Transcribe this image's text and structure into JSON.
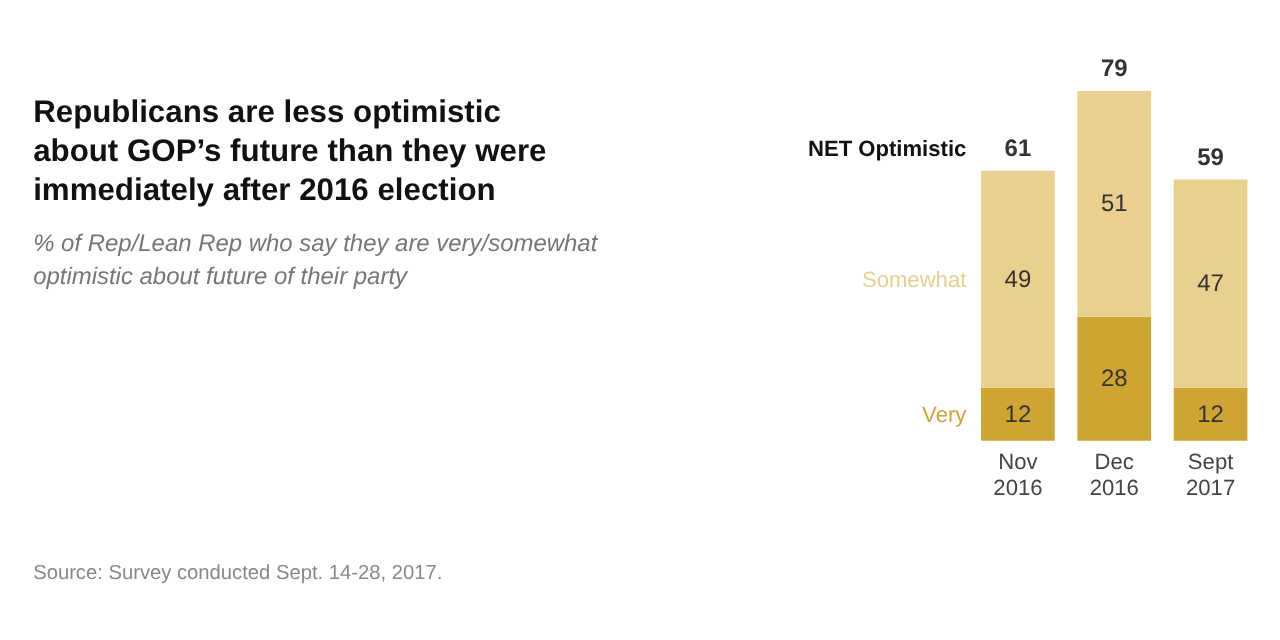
{
  "chart_data": {
    "type": "bar",
    "stacked": true,
    "title": "Republicans are less optimistic about GOP’s future than they were immediately after 2016 election",
    "subtitle": "% of Rep/Lean Rep who say they are very/somewhat optimistic about future of their party",
    "categories": [
      "Nov 2016",
      "Dec 2016",
      "Sept 2017"
    ],
    "series": [
      {
        "name": "Very",
        "color": "#cfa532",
        "values": [
          12,
          28,
          12
        ]
      },
      {
        "name": "Somewhat",
        "color": "#e9d08f",
        "values": [
          49,
          51,
          47
        ]
      }
    ],
    "data_labels": true,
    "totals": [
      "61",
      "79",
      "59"
    ],
    "annotations": [
      {
        "text": "NET Optimistic",
        "x": "Nov 2016",
        "y": 61
      },
      "Source: Survey conducted Sept. 14-28, 2017."
    ]
  }
}
